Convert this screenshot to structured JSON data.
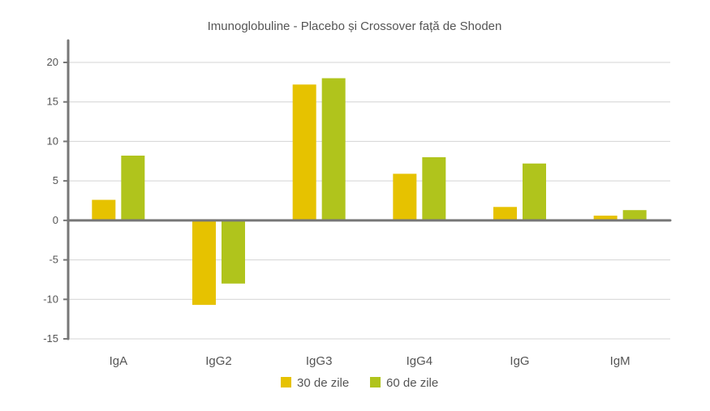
{
  "chart_data": {
    "type": "bar",
    "title": "Imunoglobuline - Placebo și Crossover față de Shoden",
    "categories": [
      "IgA",
      "IgG2",
      "IgG3",
      "IgG4",
      "IgG",
      "IgM"
    ],
    "series": [
      {
        "name": "30 de zile",
        "color": "#e6c200",
        "values": [
          2.6,
          -10.7,
          17.2,
          5.9,
          1.7,
          0.6
        ]
      },
      {
        "name": "60 de zile",
        "color": "#b0c41c",
        "values": [
          8.2,
          -8.0,
          18.0,
          8.0,
          7.2,
          1.3
        ]
      }
    ],
    "yticks": [
      20,
      15,
      10,
      5,
      0,
      -5,
      -10,
      -15
    ],
    "ytick_labels": [
      "20",
      "15",
      "10",
      "5",
      "0",
      "-5",
      "-10",
      "-15"
    ],
    "ylim": [
      -15,
      20
    ],
    "grid": true,
    "legend": "bottom"
  }
}
